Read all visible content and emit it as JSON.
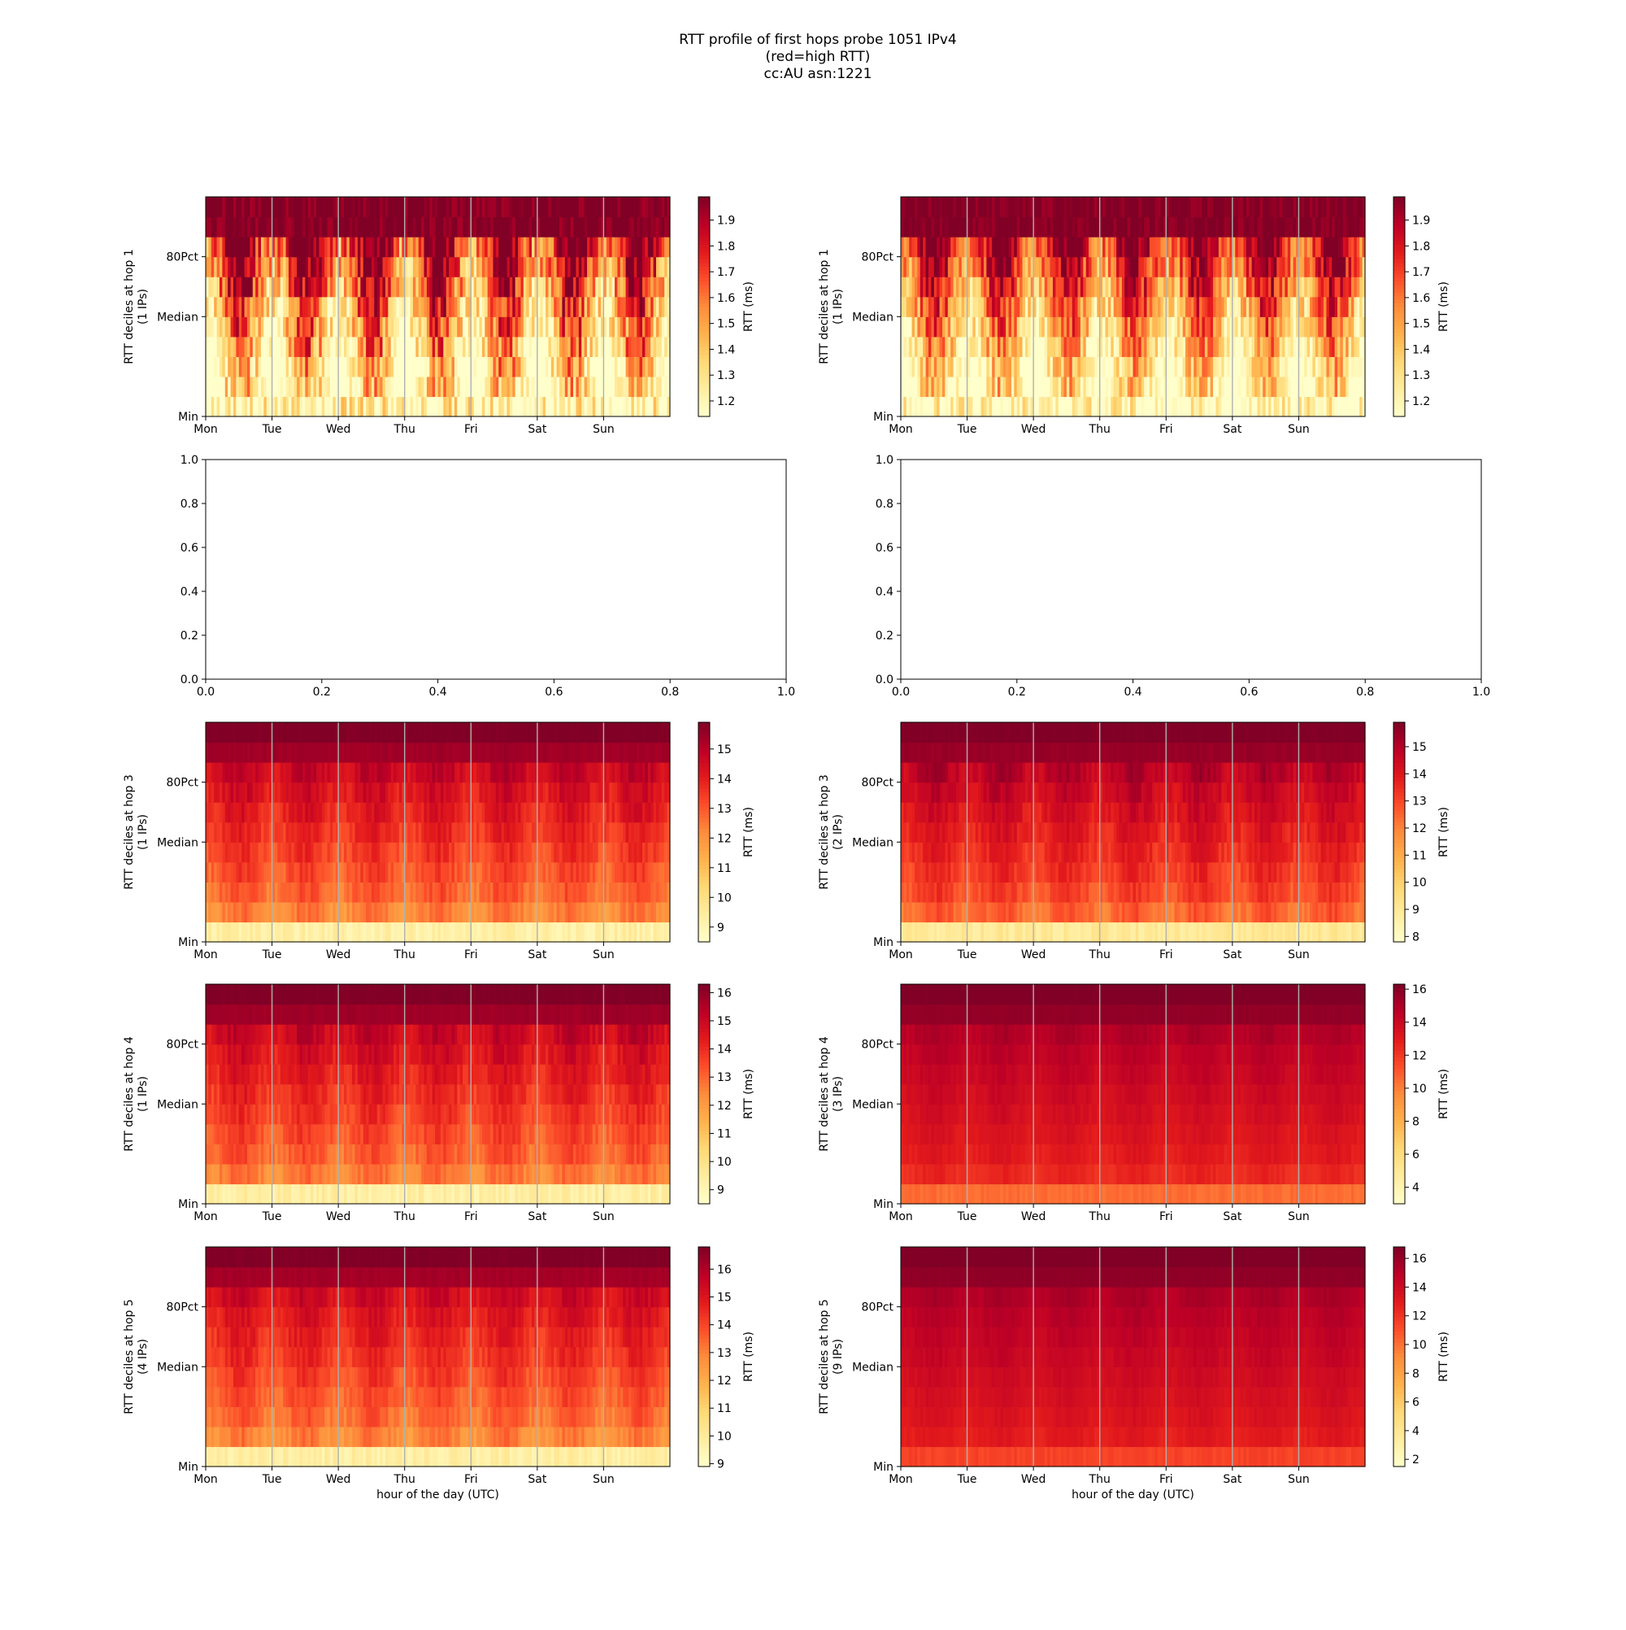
{
  "figure": {
    "title_lines": [
      "RTT profile of first hops probe 1051 IPv4",
      "(red=high RTT)",
      "cc:AU asn:1221"
    ],
    "xlabel": "hour of the day (UTC)",
    "colormap": [
      "#ffffcc",
      "#ffeda0",
      "#fed976",
      "#feb24c",
      "#fd8d3c",
      "#fc4e2a",
      "#e31a1c",
      "#bd0026",
      "#800026"
    ],
    "day_ticks": [
      "Mon",
      "Tue",
      "Wed",
      "Thu",
      "Fri",
      "Sat",
      "Sun"
    ],
    "decile_ticks": [
      "Min",
      "Median",
      "80Pct"
    ],
    "colorbar_label": "RTT (ms)"
  },
  "chart_data": [
    {
      "type": "heatmap",
      "hop": 1,
      "ylabel": "RTT deciles at hop 1",
      "ylabel2": "(1 IPs)",
      "xlabel": "",
      "x_categories": [
        "Mon",
        "Tue",
        "Wed",
        "Thu",
        "Fri",
        "Sat",
        "Sun"
      ],
      "y_ticks": [
        "Min",
        "Median",
        "80Pct"
      ],
      "clim": [
        1.14,
        1.99
      ],
      "colorbar_ticks": [
        1.2,
        1.3,
        1.4,
        1.5,
        1.6,
        1.7,
        1.8,
        1.9
      ],
      "colorbar_label": "RTT (ms)",
      "decile_profile": [
        1.16,
        1.2,
        1.26,
        1.36,
        1.44,
        1.52,
        1.62,
        1.72,
        1.82,
        1.99,
        1.99
      ],
      "noise": 0.5,
      "seed": 11
    },
    {
      "type": "heatmap",
      "hop": 1,
      "ylabel": "RTT deciles at hop 1",
      "ylabel2": "(1 IPs)",
      "xlabel": "",
      "x_categories": [
        "Mon",
        "Tue",
        "Wed",
        "Thu",
        "Fri",
        "Sat",
        "Sun"
      ],
      "y_ticks": [
        "Min",
        "Median",
        "80Pct"
      ],
      "clim": [
        1.14,
        1.99
      ],
      "colorbar_ticks": [
        1.2,
        1.3,
        1.4,
        1.5,
        1.6,
        1.7,
        1.8,
        1.9
      ],
      "colorbar_label": "RTT (ms)",
      "decile_profile": [
        1.16,
        1.21,
        1.27,
        1.37,
        1.45,
        1.53,
        1.63,
        1.72,
        1.82,
        1.99,
        1.99
      ],
      "noise": 0.4,
      "seed": 12
    },
    {
      "type": "empty",
      "xlim": [
        0.0,
        1.0
      ],
      "ylim": [
        0.0,
        1.0
      ],
      "xticks": [
        "0.0",
        "0.2",
        "0.4",
        "0.6",
        "0.8",
        "1.0"
      ],
      "yticks": [
        "0.0",
        "0.2",
        "0.4",
        "0.6",
        "0.8",
        "1.0"
      ]
    },
    {
      "type": "empty",
      "xlim": [
        0.0,
        1.0
      ],
      "ylim": [
        0.0,
        1.0
      ],
      "xticks": [
        "0.0",
        "0.2",
        "0.4",
        "0.6",
        "0.8",
        "1.0"
      ],
      "yticks": [
        "0.0",
        "0.2",
        "0.4",
        "0.6",
        "0.8",
        "1.0"
      ]
    },
    {
      "type": "heatmap",
      "hop": 3,
      "ylabel": "RTT deciles at hop 3",
      "ylabel2": "(1 IPs)",
      "xlabel": "",
      "x_categories": [
        "Mon",
        "Tue",
        "Wed",
        "Thu",
        "Fri",
        "Sat",
        "Sun"
      ],
      "y_ticks": [
        "Min",
        "Median",
        "80Pct"
      ],
      "clim": [
        8.5,
        15.9
      ],
      "colorbar_ticks": [
        9,
        10,
        11,
        12,
        13,
        14,
        15
      ],
      "colorbar_label": "RTT (ms)",
      "decile_profile": [
        9.3,
        12.3,
        12.8,
        13.1,
        13.4,
        13.7,
        14.0,
        14.3,
        14.7,
        15.4,
        15.9
      ],
      "noise": 0.7,
      "seed": 31
    },
    {
      "type": "heatmap",
      "hop": 3,
      "ylabel": "RTT deciles at hop 3",
      "ylabel2": "(2 IPs)",
      "xlabel": "",
      "x_categories": [
        "Mon",
        "Tue",
        "Wed",
        "Thu",
        "Fri",
        "Sat",
        "Sun"
      ],
      "y_ticks": [
        "Min",
        "Median",
        "80Pct"
      ],
      "clim": [
        7.8,
        15.9
      ],
      "colorbar_ticks": [
        8,
        9,
        10,
        11,
        12,
        13,
        14,
        15
      ],
      "colorbar_label": "RTT (ms)",
      "decile_profile": [
        9.0,
        12.5,
        13.0,
        13.3,
        13.6,
        13.9,
        14.2,
        14.5,
        14.9,
        15.5,
        15.9
      ],
      "noise": 0.7,
      "seed": 32
    },
    {
      "type": "heatmap",
      "hop": 4,
      "ylabel": "RTT deciles at hop 4",
      "ylabel2": "(1 IPs)",
      "xlabel": "",
      "x_categories": [
        "Mon",
        "Tue",
        "Wed",
        "Thu",
        "Fri",
        "Sat",
        "Sun"
      ],
      "y_ticks": [
        "Min",
        "Median",
        "80Pct"
      ],
      "clim": [
        8.5,
        16.3
      ],
      "colorbar_ticks": [
        9,
        10,
        11,
        12,
        13,
        14,
        15,
        16
      ],
      "colorbar_label": "RTT (ms)",
      "decile_profile": [
        9.4,
        12.6,
        13.1,
        13.4,
        13.7,
        14.0,
        14.3,
        14.6,
        15.0,
        15.8,
        16.3
      ],
      "noise": 0.7,
      "seed": 41
    },
    {
      "type": "heatmap",
      "hop": 4,
      "ylabel": "RTT deciles at hop 4",
      "ylabel2": "(3 IPs)",
      "xlabel": "",
      "x_categories": [
        "Mon",
        "Tue",
        "Wed",
        "Thu",
        "Fri",
        "Sat",
        "Sun"
      ],
      "y_ticks": [
        "Min",
        "Median",
        "80Pct"
      ],
      "clim": [
        3.0,
        16.3
      ],
      "colorbar_ticks": [
        4,
        6,
        8,
        10,
        12,
        14,
        16
      ],
      "colorbar_label": "RTT (ms)",
      "decile_profile": [
        10.5,
        12.5,
        13.0,
        13.3,
        13.6,
        13.9,
        14.2,
        14.5,
        14.9,
        15.8,
        16.3
      ],
      "noise": 0.5,
      "seed": 42
    },
    {
      "type": "heatmap",
      "hop": 5,
      "ylabel": "RTT deciles at hop 5",
      "ylabel2": "(4 IPs)",
      "xlabel": "hour of the day (UTC)",
      "x_categories": [
        "Mon",
        "Tue",
        "Wed",
        "Thu",
        "Fri",
        "Sat",
        "Sun"
      ],
      "y_ticks": [
        "Min",
        "Median",
        "80Pct"
      ],
      "clim": [
        8.9,
        16.8
      ],
      "colorbar_ticks": [
        9,
        10,
        11,
        12,
        13,
        14,
        15,
        16
      ],
      "colorbar_label": "RTT (ms)",
      "decile_profile": [
        9.8,
        12.9,
        13.4,
        13.7,
        14.0,
        14.3,
        14.6,
        14.9,
        15.3,
        16.2,
        16.8
      ],
      "noise": 0.7,
      "seed": 51
    },
    {
      "type": "heatmap",
      "hop": 5,
      "ylabel": "RTT deciles at hop 5",
      "ylabel2": "(9 IPs)",
      "xlabel": "hour of the day (UTC)",
      "x_categories": [
        "Mon",
        "Tue",
        "Wed",
        "Thu",
        "Fri",
        "Sat",
        "Sun"
      ],
      "y_ticks": [
        "Min",
        "Median",
        "80Pct"
      ],
      "clim": [
        1.5,
        16.8
      ],
      "colorbar_ticks": [
        2,
        4,
        6,
        8,
        10,
        12,
        14,
        16
      ],
      "colorbar_label": "RTT (ms)",
      "decile_profile": [
        11.5,
        13.0,
        13.4,
        13.7,
        14.0,
        14.3,
        14.6,
        14.9,
        15.3,
        16.3,
        16.8
      ],
      "noise": 0.5,
      "seed": 52
    }
  ]
}
